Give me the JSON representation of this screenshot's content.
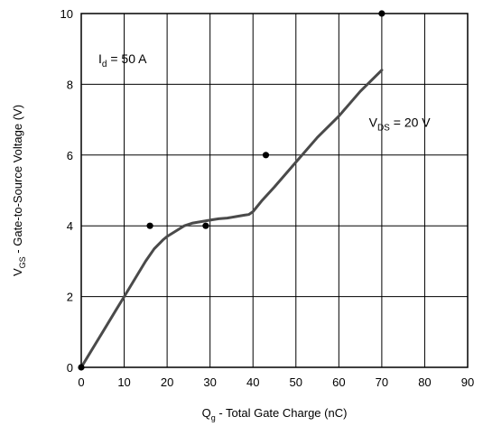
{
  "chart_data": {
    "type": "line",
    "xlabel": {
      "main": "Q",
      "sub": "g",
      "rest": " - Total Gate Charge (nC)"
    },
    "ylabel": {
      "main": "V",
      "sub": "GS",
      "rest": " - Gate-to-Source Voltage (V)"
    },
    "xlim": [
      0,
      90
    ],
    "ylim": [
      0,
      10
    ],
    "x_ticks": [
      "0",
      "10",
      "20",
      "30",
      "40",
      "50",
      "60",
      "70",
      "80",
      "90"
    ],
    "y_ticks": [
      "0",
      "2",
      "4",
      "6",
      "8",
      "10"
    ],
    "grid": true,
    "series": [
      {
        "x": [
          0,
          2,
          5,
          8,
          10,
          12,
          15,
          17,
          19,
          20,
          22,
          24,
          26,
          28,
          30,
          32,
          34,
          36,
          38,
          39,
          40,
          42,
          45,
          50,
          55,
          60,
          65,
          70
        ],
        "y": [
          0,
          0.4,
          1.0,
          1.6,
          2.0,
          2.4,
          3.0,
          3.35,
          3.6,
          3.7,
          3.85,
          4.0,
          4.08,
          4.12,
          4.16,
          4.2,
          4.22,
          4.26,
          4.3,
          4.32,
          4.4,
          4.7,
          5.1,
          5.8,
          6.5,
          7.1,
          7.8,
          8.4
        ],
        "color": "#4a4a4a"
      }
    ],
    "markers": [
      {
        "x": 0,
        "y": 0
      },
      {
        "x": 16,
        "y": 4
      },
      {
        "x": 29,
        "y": 4
      },
      {
        "x": 43,
        "y": 6
      },
      {
        "x": 70,
        "y": 10
      }
    ],
    "annotations": [
      {
        "id": "id",
        "main": "I",
        "sub": "d",
        "rest": " = 50 A",
        "x": 4,
        "y": 8.6
      },
      {
        "id": "vds",
        "main": "V",
        "sub": "DS",
        "rest": " = 20 V",
        "x": 67,
        "y": 6.8
      }
    ]
  }
}
